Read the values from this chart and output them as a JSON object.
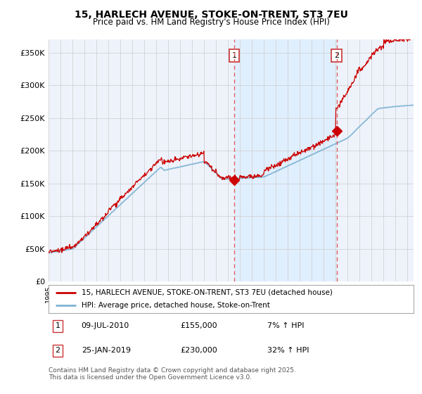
{
  "title": "15, HARLECH AVENUE, STOKE-ON-TRENT, ST3 7EU",
  "subtitle": "Price paid vs. HM Land Registry's House Price Index (HPI)",
  "ylabel_ticks": [
    "£0",
    "£50K",
    "£100K",
    "£150K",
    "£200K",
    "£250K",
    "£300K",
    "£350K"
  ],
  "ytick_values": [
    0,
    50000,
    100000,
    150000,
    200000,
    250000,
    300000,
    350000
  ],
  "ylim": [
    0,
    370000
  ],
  "xlim_start": 1995.0,
  "xlim_end": 2025.5,
  "sale1_date": 2010.52,
  "sale1_price": 155000,
  "sale1_label": "1",
  "sale2_date": 2019.07,
  "sale2_price": 230000,
  "sale2_label": "2",
  "legend_line1": "15, HARLECH AVENUE, STOKE-ON-TRENT, ST3 7EU (detached house)",
  "legend_line2": "HPI: Average price, detached house, Stoke-on-Trent",
  "footer": "Contains HM Land Registry data © Crown copyright and database right 2025.\nThis data is licensed under the Open Government Licence v3.0.",
  "hpi_color": "#7fb3d3",
  "price_color": "#cc0000",
  "vline_color": "#e06060",
  "shade_color": "#ddeeff",
  "background_color": "#eef3fb",
  "plot_bg_color": "#ffffff",
  "grid_color": "#cccccc",
  "title_fontsize": 10,
  "subtitle_fontsize": 8.5
}
